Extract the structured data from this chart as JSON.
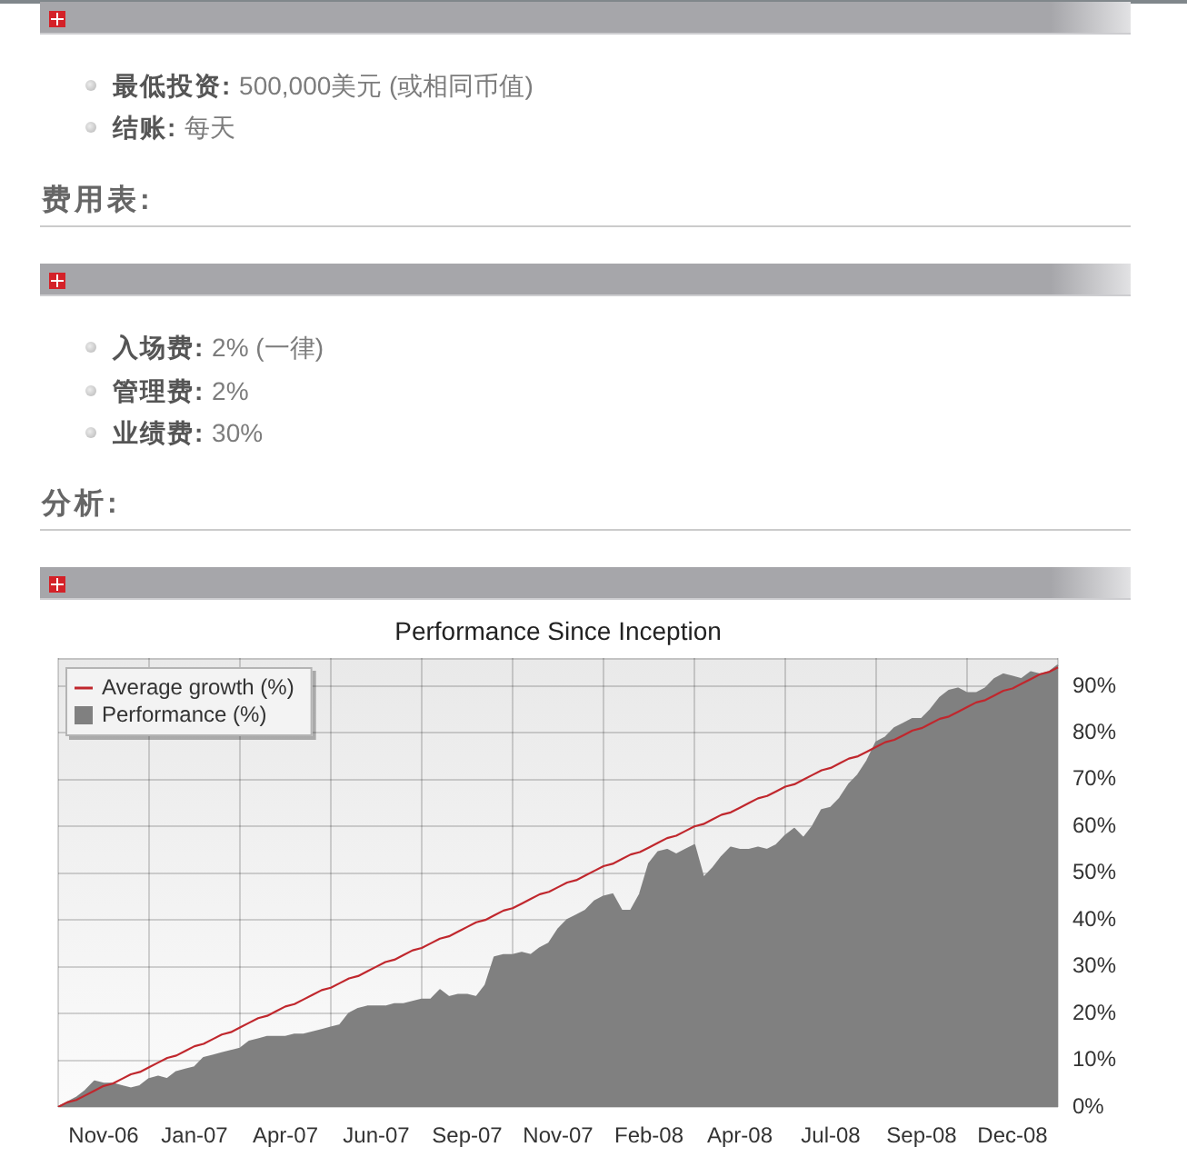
{
  "chart_data": {
    "type": "area",
    "title": "Performance Since Inception",
    "categories": [
      null,
      null,
      null,
      null,
      null,
      "Nov-06",
      null,
      null,
      null,
      null,
      null,
      null,
      null,
      null,
      null,
      "Jan-07",
      null,
      null,
      null,
      null,
      null,
      null,
      null,
      null,
      null,
      "Apr-07",
      null,
      null,
      null,
      null,
      null,
      null,
      null,
      null,
      null,
      "Jun-07",
      null,
      null,
      null,
      null,
      null,
      null,
      null,
      null,
      null,
      "Sep-07",
      null,
      null,
      null,
      null,
      null,
      null,
      null,
      null,
      null,
      "Nov-07",
      null,
      null,
      null,
      null,
      null,
      null,
      null,
      null,
      null,
      "Feb-08",
      null,
      null,
      null,
      null,
      null,
      null,
      null,
      null,
      null,
      "Apr-08",
      null,
      null,
      null,
      null,
      null,
      null,
      null,
      null,
      null,
      "Jul-08",
      null,
      null,
      null,
      null,
      null,
      null,
      null,
      null,
      null,
      "Sep-08",
      null,
      null,
      null,
      null,
      null,
      null,
      null,
      null,
      null,
      "Dec-08",
      null,
      null,
      null,
      null,
      null
    ],
    "series": [
      {
        "name": "Average growth (%)",
        "type": "line",
        "color": "#c0272d",
        "values": [
          0,
          1,
          1.5,
          2.5,
          3.5,
          4.5,
          5,
          6,
          7,
          7.5,
          8.5,
          9.5,
          10.5,
          11,
          12,
          13,
          13.5,
          14.5,
          15.5,
          16,
          17,
          18,
          19,
          19.5,
          20.5,
          21.5,
          22,
          23,
          24,
          25,
          25.5,
          26.5,
          27.5,
          28,
          29,
          30,
          31,
          31.5,
          32.5,
          33.5,
          34,
          35,
          36,
          36.5,
          37.5,
          38.5,
          39.5,
          40,
          41,
          42,
          42.5,
          43.5,
          44.5,
          45.5,
          46,
          47,
          48,
          48.5,
          49.5,
          50.5,
          51.5,
          52,
          53,
          54,
          54.5,
          55.5,
          56.5,
          57.5,
          58,
          59,
          60,
          60.5,
          61.5,
          62.5,
          63,
          64,
          65,
          66,
          66.5,
          67.5,
          68.5,
          69,
          70,
          71,
          72,
          72.5,
          73.5,
          74.5,
          75,
          76,
          77,
          78,
          78.5,
          79.5,
          80.5,
          81,
          82,
          83,
          83.5,
          84.5,
          85.5,
          86.5,
          87,
          88,
          89,
          89.5,
          90.5,
          91.5,
          92.5,
          93,
          94
        ]
      },
      {
        "name": "Performance (%)",
        "color": "#808080",
        "values": [
          0,
          1,
          2,
          3.5,
          5.5,
          5,
          5,
          4.5,
          4,
          4.5,
          6,
          6.5,
          6,
          7.5,
          8,
          8.5,
          10.5,
          11,
          11.5,
          12,
          12.5,
          14,
          14.5,
          15,
          15,
          15,
          15.5,
          15.5,
          16,
          16.5,
          17,
          17.5,
          20,
          21,
          21.5,
          21.5,
          21.5,
          22,
          22,
          22.5,
          23,
          23,
          25,
          23.5,
          24,
          24,
          23.5,
          26,
          32,
          32.5,
          32.5,
          33,
          32.5,
          34,
          35,
          38,
          40,
          41,
          42,
          44,
          45,
          45.5,
          42,
          42,
          45.5,
          52,
          54.5,
          55,
          54,
          55,
          56,
          49,
          51,
          53.5,
          55.5,
          55,
          55,
          55.5,
          55,
          56,
          58,
          59.5,
          57.5,
          60,
          63.5,
          64,
          66,
          69,
          71,
          74,
          78,
          79,
          81,
          82,
          83,
          83,
          85,
          87.5,
          89,
          89.5,
          88.5,
          88.5,
          89.5,
          91.5,
          92.5,
          92,
          91.5,
          93,
          92.5,
          93,
          94.5
        ]
      }
    ],
    "ylim": [
      0,
      96
    ],
    "yticks": [
      {
        "value": 0,
        "label": "0%"
      },
      {
        "value": 10,
        "label": "10%"
      },
      {
        "value": 20,
        "label": "20%"
      },
      {
        "value": 30,
        "label": "30%"
      },
      {
        "value": 40,
        "label": "40%"
      },
      {
        "value": 50,
        "label": "50%"
      },
      {
        "value": 60,
        "label": "60%"
      },
      {
        "value": 70,
        "label": "70%"
      },
      {
        "value": 80,
        "label": "80%"
      },
      {
        "value": 90,
        "label": "90%"
      }
    ],
    "grid": true,
    "legend": "top left",
    "marker": "none",
    "annotations": [
      "最低投资: 500,000美元 (或相同币值)",
      "结账: 每天",
      "费用表:",
      "入场费: 2% (一律)",
      "管理费: 2%",
      "业绩费: 30%",
      "分析:"
    ]
  }
}
